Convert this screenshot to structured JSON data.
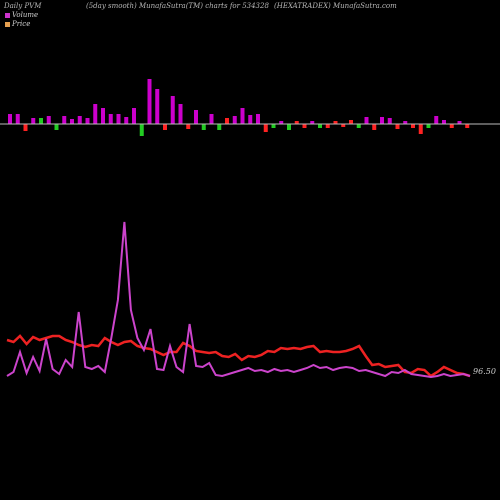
{
  "header": {
    "left": "Daily PVM",
    "mid": "(5day smooth) MunafaSutra(TM) charts for 534328",
    "right": "(HEXATRADEX) MunafaSutra.com"
  },
  "legend": [
    {
      "label": "Volume",
      "color": "#cc33cc"
    },
    {
      "label": "Price",
      "color": "#e6a050"
    }
  ],
  "colors": {
    "volume_up": "#cc00cc",
    "volume_down": "#ff2222",
    "volume_green": "#22cc22",
    "price_line": "#ee2222",
    "volume_line": "#cc44cc",
    "baseline": "#bbbbbb"
  },
  "chart_data": {
    "type": "bar+line",
    "price_label": "96.50",
    "bars": [
      {
        "v": 10,
        "c": "m"
      },
      {
        "v": 10,
        "c": "m"
      },
      {
        "v": -7,
        "c": "r"
      },
      {
        "v": 6,
        "c": "m"
      },
      {
        "v": 6,
        "c": "g"
      },
      {
        "v": 8,
        "c": "m"
      },
      {
        "v": -6,
        "c": "g"
      },
      {
        "v": 8,
        "c": "m"
      },
      {
        "v": 5,
        "c": "m"
      },
      {
        "v": 8,
        "c": "m"
      },
      {
        "v": 6,
        "c": "m"
      },
      {
        "v": 20,
        "c": "m"
      },
      {
        "v": 16,
        "c": "m"
      },
      {
        "v": 10,
        "c": "m"
      },
      {
        "v": 10,
        "c": "m"
      },
      {
        "v": 7,
        "c": "m"
      },
      {
        "v": 16,
        "c": "m"
      },
      {
        "v": -12,
        "c": "g"
      },
      {
        "v": 45,
        "c": "m"
      },
      {
        "v": 35,
        "c": "m"
      },
      {
        "v": -6,
        "c": "r"
      },
      {
        "v": 28,
        "c": "m"
      },
      {
        "v": 20,
        "c": "m"
      },
      {
        "v": -5,
        "c": "r"
      },
      {
        "v": 14,
        "c": "m"
      },
      {
        "v": -6,
        "c": "g"
      },
      {
        "v": 10,
        "c": "m"
      },
      {
        "v": -6,
        "c": "g"
      },
      {
        "v": 6,
        "c": "r"
      },
      {
        "v": 8,
        "c": "m"
      },
      {
        "v": 16,
        "c": "m"
      },
      {
        "v": 9,
        "c": "m"
      },
      {
        "v": 10,
        "c": "m"
      },
      {
        "v": -8,
        "c": "r"
      },
      {
        "v": -4,
        "c": "g"
      },
      {
        "v": 3,
        "c": "m"
      },
      {
        "v": -6,
        "c": "g"
      },
      {
        "v": 3,
        "c": "r"
      },
      {
        "v": -4,
        "c": "r"
      },
      {
        "v": 3,
        "c": "m"
      },
      {
        "v": -4,
        "c": "g"
      },
      {
        "v": -4,
        "c": "r"
      },
      {
        "v": 3,
        "c": "r"
      },
      {
        "v": -3,
        "c": "r"
      },
      {
        "v": 4,
        "c": "r"
      },
      {
        "v": -4,
        "c": "g"
      },
      {
        "v": 7,
        "c": "m"
      },
      {
        "v": -6,
        "c": "r"
      },
      {
        "v": 7,
        "c": "m"
      },
      {
        "v": 6,
        "c": "m"
      },
      {
        "v": -5,
        "c": "r"
      },
      {
        "v": 3,
        "c": "m"
      },
      {
        "v": -4,
        "c": "r"
      },
      {
        "v": -10,
        "c": "r"
      },
      {
        "v": -4,
        "c": "g"
      },
      {
        "v": 8,
        "c": "m"
      },
      {
        "v": 4,
        "c": "m"
      },
      {
        "v": -4,
        "c": "r"
      },
      {
        "v": 3,
        "c": "m"
      },
      {
        "v": -4,
        "c": "r"
      }
    ],
    "price": [
      340,
      342,
      336,
      344,
      337,
      340,
      338,
      336,
      336,
      340,
      342,
      345,
      347,
      345,
      346,
      338,
      342,
      345,
      342,
      341,
      346,
      348,
      349,
      352,
      355,
      352,
      352,
      343,
      346,
      351,
      352,
      353,
      352,
      356,
      357,
      354,
      360,
      356,
      357,
      355,
      351,
      352,
      348,
      349,
      348,
      349,
      347,
      346,
      352,
      351,
      352,
      352,
      351,
      349,
      346,
      356,
      365,
      364,
      367,
      366,
      365,
      372,
      373,
      369,
      370,
      376,
      372,
      367,
      370,
      373,
      374,
      376
    ],
    "volume": [
      376,
      372,
      352,
      373,
      357,
      371,
      339,
      369,
      374,
      360,
      367,
      312,
      367,
      369,
      366,
      372,
      338,
      300,
      222,
      310,
      338,
      350,
      329,
      369,
      370,
      346,
      367,
      372,
      324,
      366,
      367,
      363,
      375,
      376,
      374,
      372,
      370,
      368,
      371,
      370,
      372,
      369,
      371,
      370,
      372,
      370,
      368,
      365,
      368,
      367,
      370,
      368,
      367,
      368,
      371,
      370,
      372,
      374,
      376,
      372,
      373,
      370,
      374,
      375,
      376,
      377,
      376,
      374,
      376,
      375,
      374,
      376
    ]
  }
}
